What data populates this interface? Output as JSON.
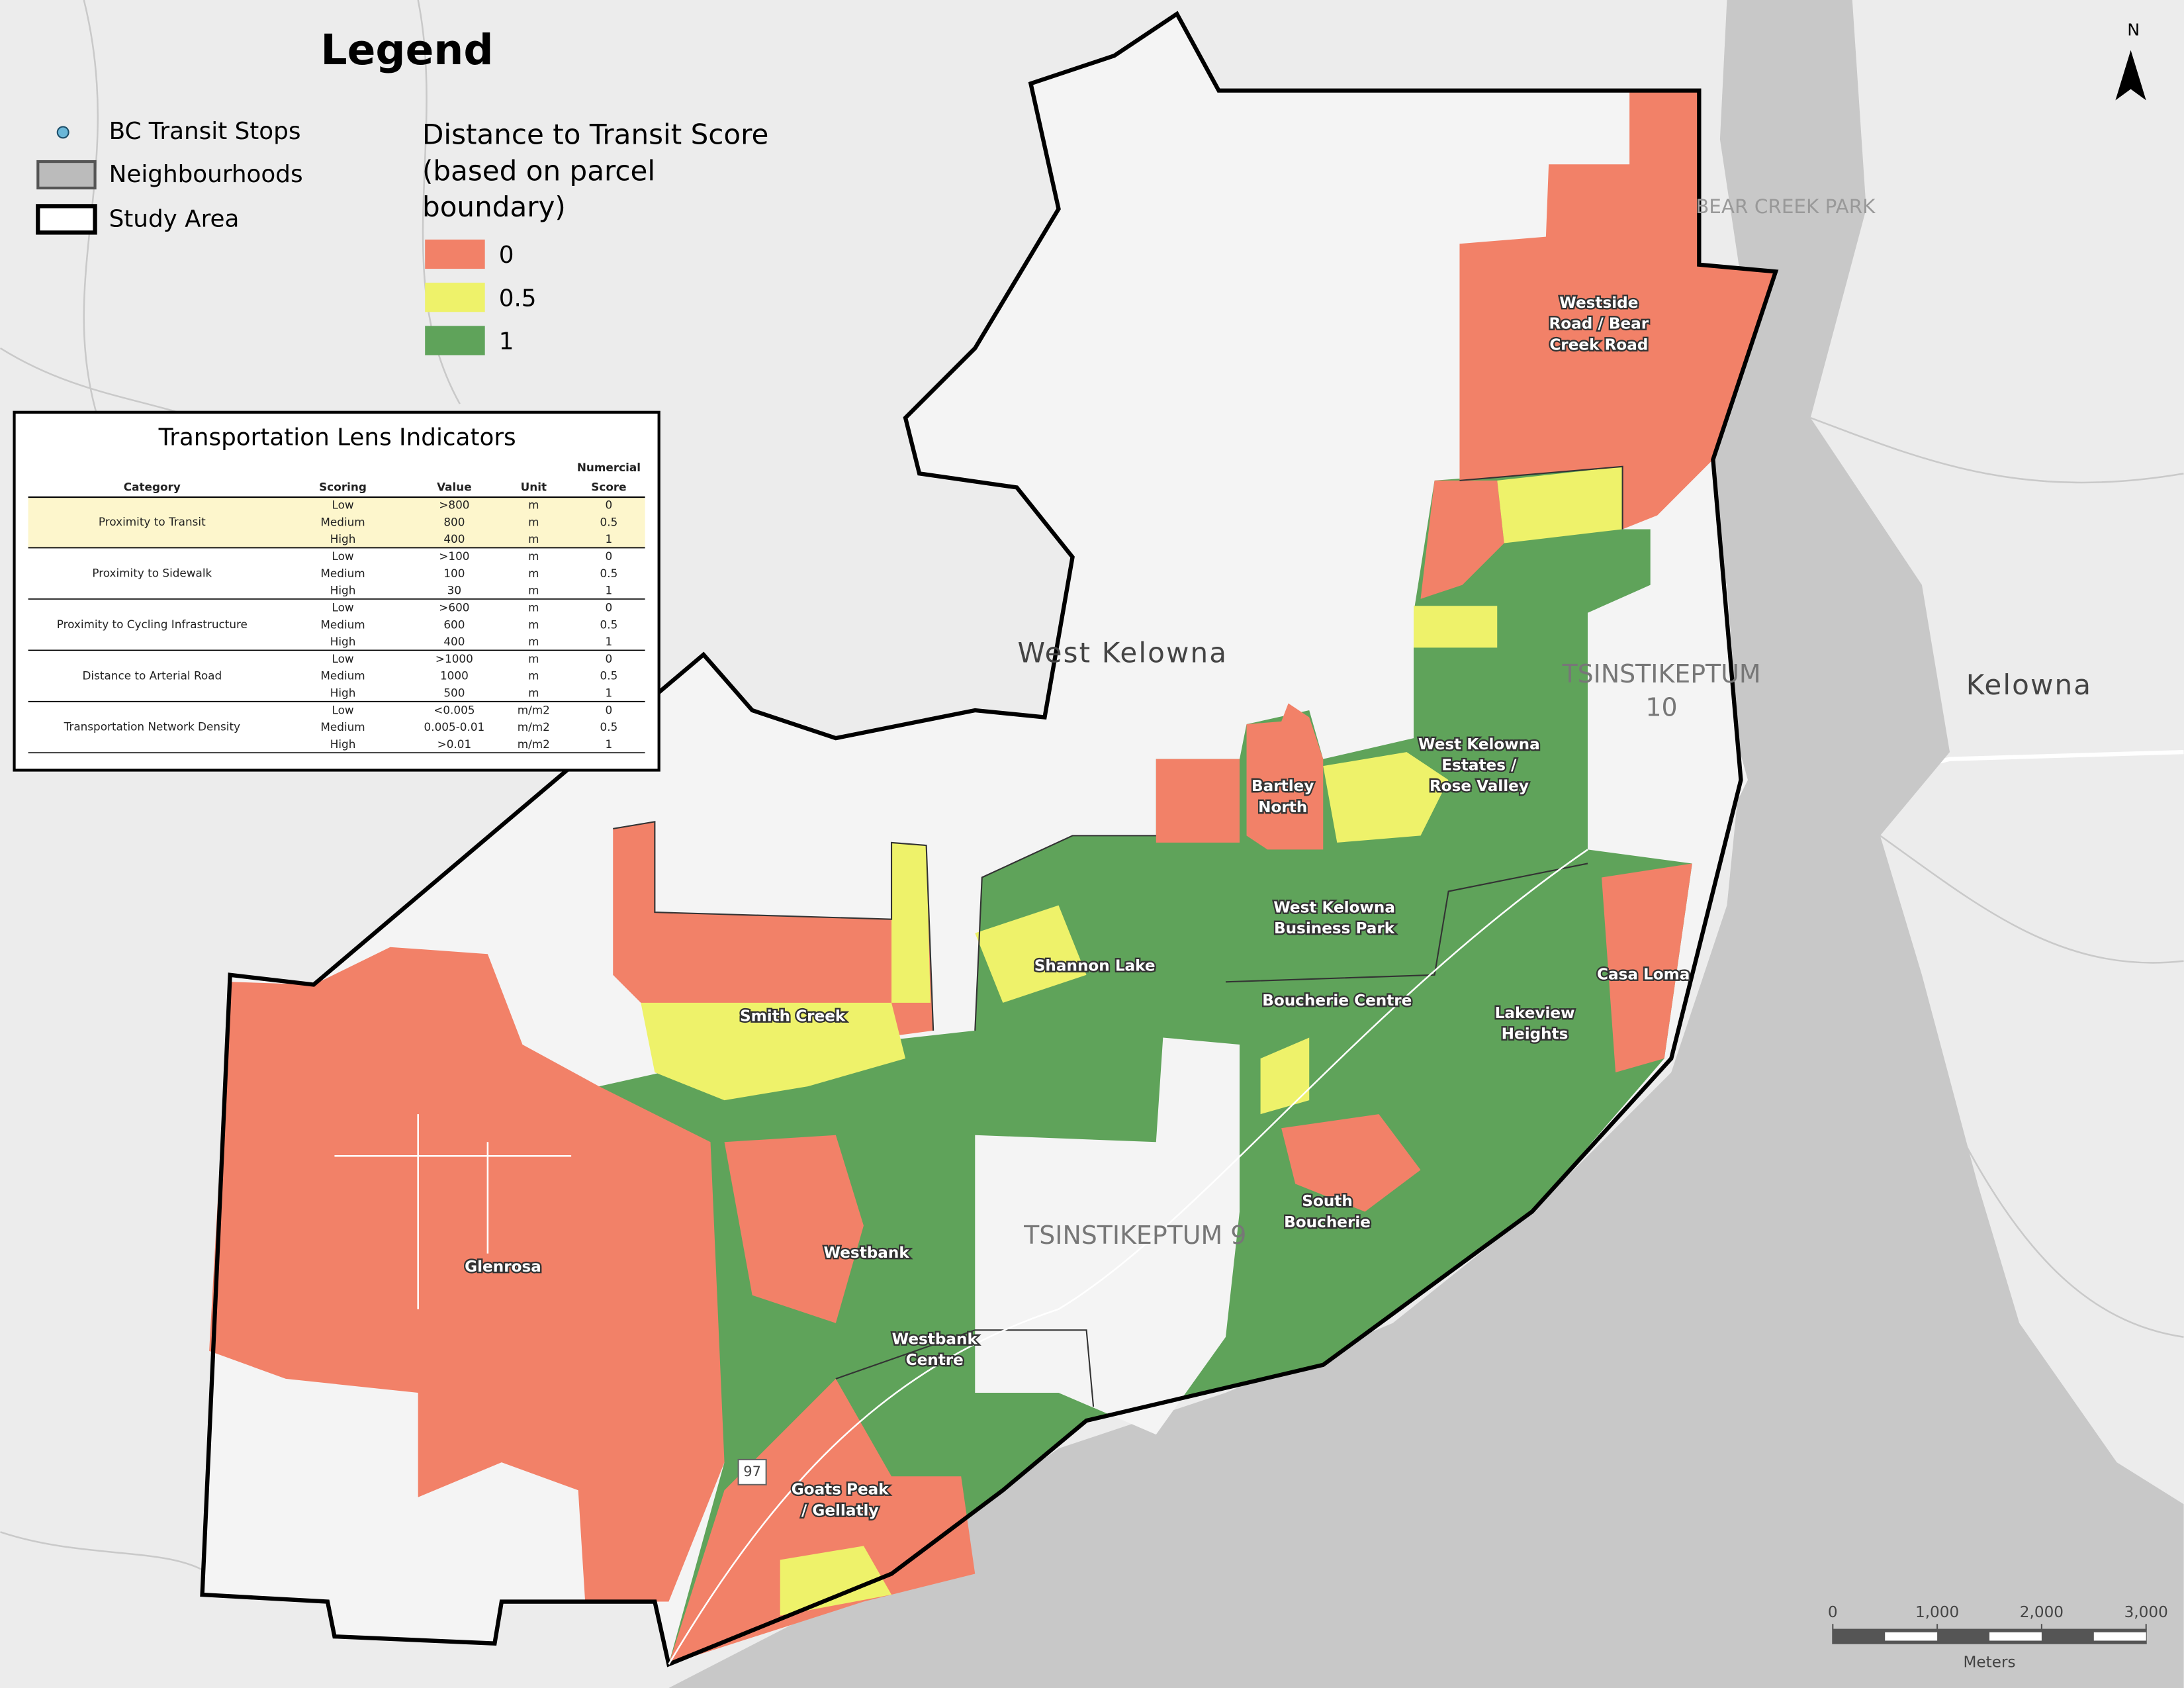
{
  "legend": {
    "title": "Legend",
    "items": [
      "BC Transit Stops",
      "Neighbourhoods",
      "Study Area"
    ],
    "score_title": [
      "Distance to Transit Score",
      "(based on parcel",
      "boundary)"
    ],
    "scores": [
      {
        "value": 0,
        "color": "#f28168"
      },
      {
        "value": 0.5,
        "color": "#eef26a"
      },
      {
        "value": 1,
        "color": "#5fa35a"
      }
    ]
  },
  "table": {
    "title": "Transportation Lens Indicators",
    "header": [
      "Category",
      "Scoring",
      "Value",
      "Unit"
    ],
    "score_header": [
      "Numercial",
      "Score"
    ],
    "groups": [
      {
        "category": "Proximity to Transit",
        "rows": [
          [
            "Low",
            ">800",
            "m",
            0
          ],
          [
            "Medium",
            "800",
            "m",
            0.5
          ],
          [
            "High",
            "400",
            "m",
            1
          ]
        ]
      },
      {
        "category": "Proximity to Sidewalk",
        "rows": [
          [
            "Low",
            ">100",
            "m",
            0
          ],
          [
            "Medium",
            "100",
            "m",
            0.5
          ],
          [
            "High",
            "30",
            "m",
            1
          ]
        ]
      },
      {
        "category": "Proximity to Cycling Infrastructure",
        "rows": [
          [
            "Low",
            ">600",
            "m",
            0
          ],
          [
            "Medium",
            "600",
            "m",
            0.5
          ],
          [
            "High",
            "400",
            "m",
            1
          ]
        ]
      },
      {
        "category": "Distance to Arterial Road",
        "rows": [
          [
            "Low",
            ">1000",
            "m",
            0
          ],
          [
            "Medium",
            "1000",
            "m",
            0.5
          ],
          [
            "High",
            "500",
            "m",
            1
          ]
        ]
      },
      {
        "category": "Transportation Network Density",
        "rows": [
          [
            "Low",
            "<0.005",
            "m/m2",
            0
          ],
          [
            "Medium",
            "0.005-0.01",
            "m/m2",
            0.5
          ],
          [
            "High",
            ">0.01",
            "m/m2",
            1
          ]
        ]
      }
    ]
  },
  "neighbourhoods": [
    [
      "Westside",
      "Road / Bear",
      "Creek Road"
    ],
    [
      "Bartley",
      "North"
    ],
    [
      "West Kelowna",
      "Estates /",
      "Rose Valley"
    ],
    [
      "West Kelowna",
      "Business Park"
    ],
    [
      "Shannon Lake"
    ],
    [
      "Boucherie Centre"
    ],
    [
      "Casa Loma"
    ],
    [
      "Lakeview",
      "Heights"
    ],
    [
      "Smith Creek"
    ],
    [
      "Westbank"
    ],
    [
      "South",
      "Boucherie"
    ],
    [
      "Glenrosa"
    ],
    [
      "Westbank",
      "Centre"
    ],
    [
      "Goats Peak",
      "/ Gellatly"
    ]
  ],
  "places": {
    "west_kelowna": "West Kelowna",
    "kelowna": "Kelowna",
    "reserve10": [
      "TSINSTIKEPTUM",
      "10"
    ],
    "reserve9": "TSINSTIKEPTUM 9",
    "park": "BEAR CREEK PARK",
    "highway": "97"
  },
  "north": "N",
  "scale_bar": {
    "ticks": [
      0,
      {
        "value": 1000,
        "label": "1,000"
      },
      {
        "value": 2000,
        "label": "2,000"
      },
      {
        "value": 3000,
        "label": "3,000"
      }
    ],
    "unit": "Meters"
  }
}
